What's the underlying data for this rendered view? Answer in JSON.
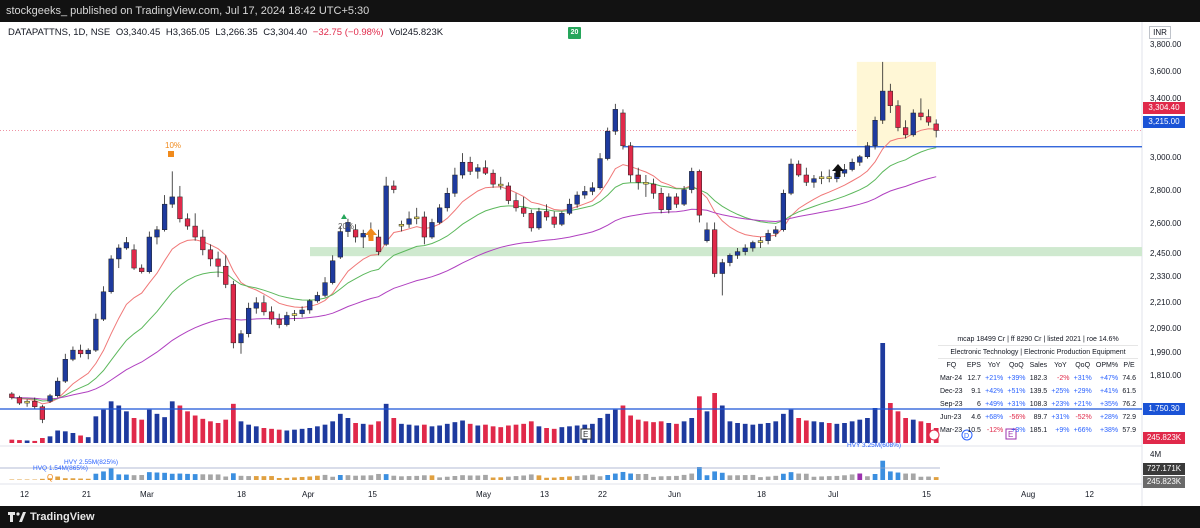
{
  "header": {
    "publisher": "stockgeeks_",
    "published_text": "published on TradingView.com, Jul 17, 2024 18:42 UTC+5:30"
  },
  "legend": {
    "symbol": "DATAPATTNS, 1D, NSE",
    "open": "O3,340.45",
    "high": "H3,365.05",
    "low": "L3,266.35",
    "close": "C3,304.40",
    "change": "−32.75 (−0.98%)",
    "volume": "Vol245.823K"
  },
  "badge": "20",
  "currency": "INR",
  "footer": {
    "brand": "TradingView"
  },
  "y_axis_labels": [
    "3,800.00",
    "3,600.00",
    "3,400.00",
    "3,200.00",
    "3,000.00",
    "2,800.00",
    "2,600.00",
    "2,450.00",
    "2,330.00",
    "2,210.00",
    "2,090.00",
    "1,990.00",
    "1,810.00"
  ],
  "price_tags": {
    "last_price": "3,304.40",
    "resistance": "3,215.00",
    "volume_line": "1,750.30",
    "volume": "245.823K",
    "rvol_label": "4M",
    "rvol_a": "727.171K",
    "rvol_b": "245.823K"
  },
  "x_axis_labels": [
    "12",
    "21",
    "Mar",
    "18",
    "Apr",
    "15",
    "May",
    "13",
    "22",
    "Jun",
    "18",
    "Jul",
    "15",
    "Aug",
    "12"
  ],
  "annotations": {
    "pct_high": "10%",
    "pct_low": "20%",
    "hvy_q": "HVQ 1.54M(865%)",
    "hvy_y": "HVY 2.55M(825%)",
    "hvy_recent": "HVY 3.25M(608%)",
    "q_mark": "Q",
    "e_mark": "E",
    "d_mark": "D"
  },
  "fundamentals": {
    "info": "mcap 18499 Cr  |  ff 8290 Cr  |  listed 2021  |  roe 14.6%",
    "sector": "Electronic Technology  |  Electronic Production Equipment",
    "columns": [
      "FQ",
      "EPS",
      "YoY",
      "QoQ",
      "Sales",
      "YoY",
      "QoQ",
      "OPM%",
      "P/E"
    ],
    "rows": [
      [
        "Mar-24",
        "12.7",
        "+21%",
        "+39%",
        "182.3",
        "-2%",
        "+31%",
        "+47%",
        "74.6"
      ],
      [
        "Dec-23",
        "9.1",
        "+42%",
        "+51%",
        "139.5",
        "+25%",
        "+29%",
        "+41%",
        "61.5"
      ],
      [
        "Sep-23",
        "6",
        "+49%",
        "+31%",
        "108.3",
        "+23%",
        "+21%",
        "+35%",
        "76.2"
      ],
      [
        "Jun-23",
        "4.6",
        "+68%",
        "-56%",
        "89.7",
        "+31%",
        "-52%",
        "+28%",
        "72.9"
      ],
      [
        "Mar-23",
        "10.5",
        "-12%",
        "+3%",
        "185.1",
        "+9%",
        "+66%",
        "+38%",
        "57.9"
      ]
    ]
  },
  "colors": {
    "up": "#1e3a9e",
    "down": "#e0294a",
    "doji": "#f5e663",
    "ema_fast": "#f07878",
    "ema_mid": "#5cb85c",
    "ema_slow": "#b040c0",
    "zone": "#cfe9cf",
    "level": "#1a53d6"
  },
  "chart_data": {
    "type": "candlestick",
    "ylim": [
      1750,
      3800
    ],
    "candles": [
      [
        1860,
        1870,
        1830,
        1840
      ],
      [
        1840,
        1850,
        1800,
        1810
      ],
      [
        1810,
        1830,
        1790,
        1820
      ],
      [
        1820,
        1840,
        1780,
        1790
      ],
      [
        1790,
        1800,
        1700,
        1720
      ],
      [
        1820,
        1860,
        1810,
        1850
      ],
      [
        1850,
        1950,
        1840,
        1930
      ],
      [
        1930,
        2080,
        1920,
        2050
      ],
      [
        2050,
        2120,
        2040,
        2100
      ],
      [
        2100,
        2130,
        2060,
        2080
      ],
      [
        2080,
        2110,
        2050,
        2100
      ],
      [
        2100,
        2300,
        2090,
        2270
      ],
      [
        2270,
        2450,
        2260,
        2420
      ],
      [
        2420,
        2620,
        2410,
        2600
      ],
      [
        2600,
        2680,
        2550,
        2660
      ],
      [
        2660,
        2720,
        2650,
        2690
      ],
      [
        2650,
        2680,
        2540,
        2550
      ],
      [
        2550,
        2570,
        2520,
        2530
      ],
      [
        2530,
        2750,
        2520,
        2720
      ],
      [
        2720,
        2780,
        2680,
        2760
      ],
      [
        2760,
        2950,
        2750,
        2900
      ],
      [
        2900,
        3080,
        2880,
        2940
      ],
      [
        2940,
        3000,
        2800,
        2820
      ],
      [
        2820,
        2850,
        2760,
        2780
      ],
      [
        2780,
        2850,
        2700,
        2720
      ],
      [
        2720,
        2760,
        2620,
        2650
      ],
      [
        2650,
        2680,
        2560,
        2600
      ],
      [
        2600,
        2640,
        2500,
        2560
      ],
      [
        2560,
        2620,
        2440,
        2460
      ],
      [
        2460,
        2480,
        2110,
        2140
      ],
      [
        2140,
        2210,
        2080,
        2190
      ],
      [
        2190,
        2360,
        2170,
        2330
      ],
      [
        2330,
        2390,
        2300,
        2360
      ],
      [
        2360,
        2400,
        2290,
        2310
      ],
      [
        2310,
        2340,
        2240,
        2270
      ],
      [
        2270,
        2300,
        2220,
        2240
      ],
      [
        2240,
        2310,
        2230,
        2290
      ],
      [
        2290,
        2320,
        2260,
        2300
      ],
      [
        2300,
        2340,
        2280,
        2320
      ],
      [
        2320,
        2380,
        2300,
        2370
      ],
      [
        2370,
        2420,
        2360,
        2400
      ],
      [
        2400,
        2500,
        2390,
        2470
      ],
      [
        2470,
        2620,
        2460,
        2590
      ],
      [
        2610,
        2780,
        2600,
        2750
      ],
      [
        2750,
        2820,
        2720,
        2800
      ],
      [
        2760,
        2790,
        2690,
        2720
      ],
      [
        2720,
        2760,
        2660,
        2740
      ],
      [
        2740,
        2800,
        2700,
        2720
      ],
      [
        2720,
        2760,
        2620,
        2640
      ],
      [
        2680,
        3050,
        2670,
        3000
      ],
      [
        3000,
        3030,
        2960,
        2980
      ],
      [
        2780,
        2810,
        2750,
        2790
      ],
      [
        2790,
        2860,
        2770,
        2820
      ],
      [
        2820,
        2880,
        2790,
        2830
      ],
      [
        2830,
        2860,
        2680,
        2720
      ],
      [
        2720,
        2820,
        2710,
        2800
      ],
      [
        2800,
        2900,
        2790,
        2880
      ],
      [
        2880,
        2990,
        2860,
        2960
      ],
      [
        2960,
        3100,
        2940,
        3060
      ],
      [
        3060,
        3180,
        3040,
        3130
      ],
      [
        3130,
        3160,
        3060,
        3080
      ],
      [
        3080,
        3120,
        3040,
        3100
      ],
      [
        3100,
        3140,
        3060,
        3070
      ],
      [
        3070,
        3090,
        2990,
        3010
      ],
      [
        3010,
        3050,
        2980,
        3000
      ],
      [
        3000,
        3020,
        2900,
        2920
      ],
      [
        2920,
        2960,
        2860,
        2880
      ],
      [
        2880,
        2940,
        2830,
        2850
      ],
      [
        2850,
        2870,
        2750,
        2770
      ],
      [
        2770,
        2880,
        2760,
        2860
      ],
      [
        2860,
        2900,
        2810,
        2830
      ],
      [
        2830,
        2860,
        2770,
        2790
      ],
      [
        2790,
        2860,
        2780,
        2850
      ],
      [
        2850,
        2930,
        2840,
        2900
      ],
      [
        2900,
        2970,
        2880,
        2950
      ],
      [
        2950,
        3000,
        2930,
        2970
      ],
      [
        2970,
        3020,
        2950,
        2990
      ],
      [
        2990,
        3180,
        2980,
        3150
      ],
      [
        3150,
        3320,
        3140,
        3300
      ],
      [
        3300,
        3450,
        3280,
        3420
      ],
      [
        3400,
        3420,
        3200,
        3220
      ],
      [
        3220,
        3240,
        3020,
        3060
      ],
      [
        3060,
        3100,
        2980,
        3020
      ],
      [
        3020,
        3060,
        2940,
        3010
      ],
      [
        3010,
        3040,
        2930,
        2960
      ],
      [
        2960,
        2990,
        2850,
        2870
      ],
      [
        2870,
        2960,
        2850,
        2940
      ],
      [
        2940,
        2960,
        2880,
        2900
      ],
      [
        2900,
        3000,
        2890,
        2980
      ],
      [
        2980,
        3100,
        2960,
        3080
      ],
      [
        3080,
        3090,
        2800,
        2840
      ],
      [
        2700,
        2800,
        2690,
        2760
      ],
      [
        2760,
        2800,
        2500,
        2520
      ],
      [
        2520,
        2600,
        2400,
        2580
      ],
      [
        2580,
        2630,
        2560,
        2620
      ],
      [
        2620,
        2660,
        2600,
        2640
      ],
      [
        2640,
        2680,
        2620,
        2660
      ],
      [
        2660,
        2700,
        2640,
        2690
      ],
      [
        2690,
        2720,
        2660,
        2700
      ],
      [
        2700,
        2760,
        2680,
        2740
      ],
      [
        2740,
        2780,
        2720,
        2760
      ],
      [
        2760,
        2980,
        2750,
        2960
      ],
      [
        2960,
        3150,
        2950,
        3120
      ],
      [
        3120,
        3140,
        3050,
        3060
      ],
      [
        3060,
        3100,
        3000,
        3020
      ],
      [
        3020,
        3060,
        2990,
        3040
      ],
      [
        3040,
        3080,
        3010,
        3050
      ],
      [
        3050,
        3090,
        3020,
        3040
      ],
      [
        3040,
        3080,
        3020,
        3070
      ],
      [
        3070,
        3120,
        3050,
        3090
      ],
      [
        3090,
        3150,
        3080,
        3130
      ],
      [
        3130,
        3170,
        3110,
        3160
      ],
      [
        3160,
        3240,
        3150,
        3220
      ],
      [
        3220,
        3380,
        3200,
        3360
      ],
      [
        3360,
        3680,
        3340,
        3520
      ],
      [
        3520,
        3560,
        3400,
        3440
      ],
      [
        3440,
        3470,
        3300,
        3320
      ],
      [
        3320,
        3360,
        3260,
        3280
      ],
      [
        3280,
        3420,
        3270,
        3400
      ],
      [
        3400,
        3480,
        3360,
        3380
      ],
      [
        3380,
        3420,
        3330,
        3350
      ],
      [
        3340,
        3365,
        3266,
        3304
      ]
    ],
    "volume": [
      40,
      35,
      30,
      25,
      60,
      80,
      150,
      140,
      120,
      90,
      70,
      320,
      400,
      500,
      450,
      380,
      300,
      280,
      400,
      350,
      310,
      500,
      450,
      380,
      330,
      290,
      260,
      240,
      280,
      470,
      260,
      220,
      200,
      180,
      170,
      160,
      150,
      160,
      170,
      180,
      200,
      220,
      260,
      350,
      300,
      240,
      230,
      220,
      260,
      470,
      300,
      230,
      220,
      210,
      220,
      200,
      210,
      230,
      250,
      270,
      230,
      210,
      220,
      200,
      190,
      210,
      220,
      230,
      260,
      200,
      180,
      170,
      190,
      200,
      210,
      220,
      230,
      300,
      350,
      400,
      450,
      330,
      280,
      260,
      250,
      260,
      240,
      230,
      260,
      300,
      560,
      380,
      600,
      450,
      260,
      240,
      230,
      220,
      230,
      240,
      260,
      350,
      400,
      300,
      270,
      260,
      250,
      240,
      230,
      240,
      260,
      280,
      300,
      420,
      1200,
      480,
      380,
      300,
      280,
      260,
      240,
      180
    ]
  }
}
